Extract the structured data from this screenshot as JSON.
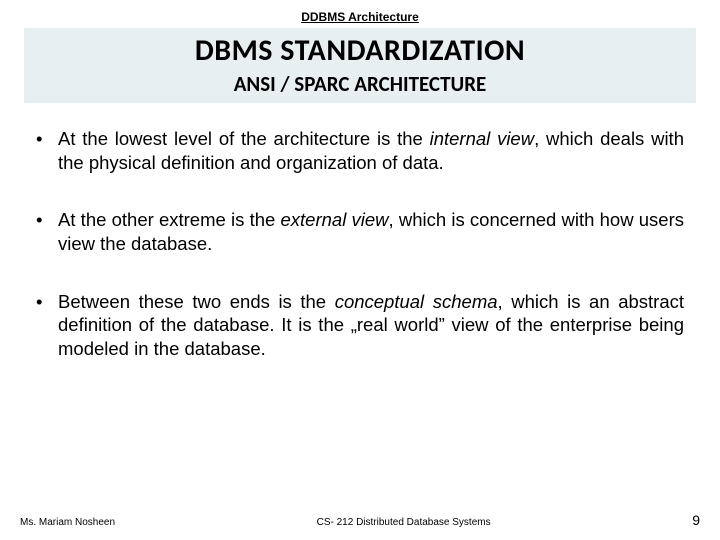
{
  "header": {
    "topic": "DDBMS Architecture",
    "title": "DBMS STANDARDIZATION",
    "subtitle": "ANSI / SPARC ARCHITECTURE",
    "title_bg": "#e8eff0"
  },
  "bullets": [
    {
      "pre": "At the lowest level of the architecture is the ",
      "em": "internal view",
      "post": ", which deals with the physical definition and organization of data."
    },
    {
      "pre": "At the other extreme is the ",
      "em": "external view",
      "post": ", which is concerned with how users view the database."
    },
    {
      "pre": "Between these two ends is the ",
      "em": "conceptual schema",
      "post": ", which is an abstract definition of the database. It is the „real world” view of the enterprise being modeled in the database."
    }
  ],
  "footer": {
    "author": "Ms. Mariam Nosheen",
    "course": "CS- 212 Distributed Database Systems",
    "page": "9"
  },
  "style": {
    "body_fontsize": 18.5,
    "title_fontsize": 30,
    "subtitle_fontsize": 21,
    "topic_fontsize": 12,
    "footer_fontsize": 10,
    "page_fontsize": 14,
    "text_color": "#000000",
    "bg_color": "#ffffff"
  }
}
